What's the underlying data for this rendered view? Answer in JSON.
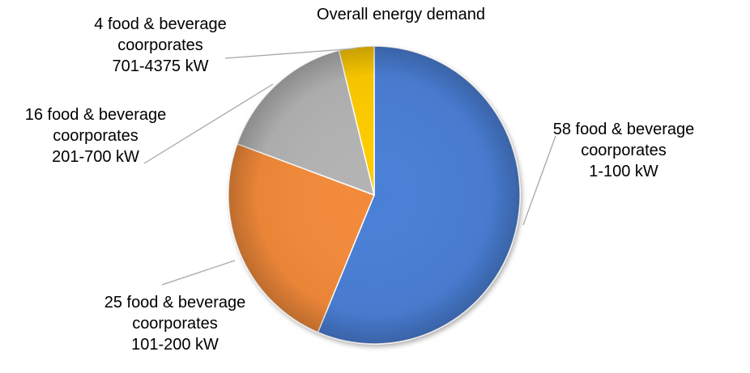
{
  "chart_data": {
    "type": "pie",
    "title": "Overall energy demand",
    "slices": [
      {
        "label": [
          "58 food & beverage",
          "coorporates",
          "1-100 kW"
        ],
        "value": 58,
        "color": "#4a7fd6"
      },
      {
        "label": [
          "25 food & beverage",
          "coorporates",
          "101-200 kW"
        ],
        "value": 25,
        "color": "#f38a3a"
      },
      {
        "label": [
          "16 food & beverage",
          "coorporates",
          "201-700 kW"
        ],
        "value": 16,
        "color": "#b3b3b3"
      },
      {
        "label": [
          "4 food & beverage",
          "coorporates",
          "701-4375 kW"
        ],
        "value": 4,
        "color": "#ffcc00"
      }
    ]
  }
}
